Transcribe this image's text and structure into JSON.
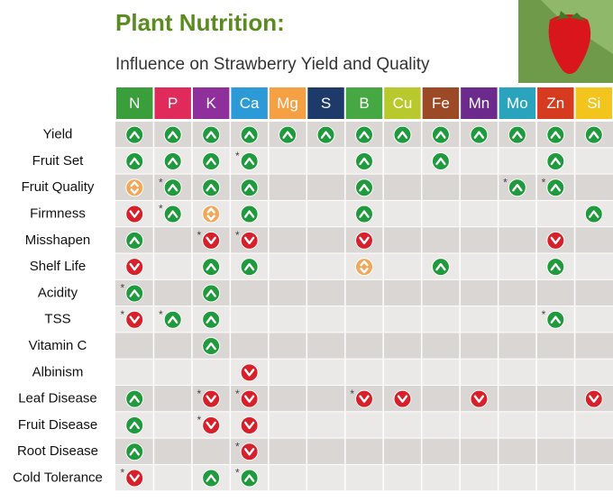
{
  "header": {
    "title": "Plant Nutrition:",
    "subtitle": "Influence on Strawberry Yield and Quality"
  },
  "table": {
    "columns": [
      {
        "label": "N",
        "color": "#3a9f3a"
      },
      {
        "label": "P",
        "color": "#e02a5c"
      },
      {
        "label": "K",
        "color": "#8e2f9c"
      },
      {
        "label": "Ca",
        "color": "#2b9ad6"
      },
      {
        "label": "Mg",
        "color": "#f4a043"
      },
      {
        "label": "S",
        "color": "#1d3a6b"
      },
      {
        "label": "B",
        "color": "#45a842"
      },
      {
        "label": "Cu",
        "color": "#b7c92c"
      },
      {
        "label": "Fe",
        "color": "#9c4a25"
      },
      {
        "label": "Mn",
        "color": "#6b2a8c"
      },
      {
        "label": "Mo",
        "color": "#2aa3bd"
      },
      {
        "label": "Zn",
        "color": "#d63b1f"
      },
      {
        "label": "Si",
        "color": "#f3c41c"
      }
    ],
    "rows": [
      {
        "label": "Yield",
        "cells": [
          {
            "mark": "up"
          },
          {
            "mark": "up"
          },
          {
            "mark": "up"
          },
          {
            "mark": "up"
          },
          {
            "mark": "up"
          },
          {
            "mark": "up"
          },
          {
            "mark": "up"
          },
          {
            "mark": "up"
          },
          {
            "mark": "up"
          },
          {
            "mark": "up"
          },
          {
            "mark": "up"
          },
          {
            "mark": "up"
          },
          {
            "mark": "up"
          }
        ]
      },
      {
        "label": "Fruit Set",
        "cells": [
          {
            "mark": "up"
          },
          {
            "mark": "up"
          },
          {
            "mark": "up"
          },
          {
            "mark": "up",
            "note": "*"
          },
          null,
          null,
          {
            "mark": "up"
          },
          null,
          {
            "mark": "up"
          },
          null,
          null,
          {
            "mark": "up"
          },
          null
        ]
      },
      {
        "label": "Fruit Quality",
        "cells": [
          {
            "mark": "both"
          },
          {
            "mark": "up",
            "note": "*"
          },
          {
            "mark": "up"
          },
          {
            "mark": "up"
          },
          null,
          null,
          {
            "mark": "up"
          },
          null,
          null,
          null,
          {
            "mark": "up",
            "note": "*"
          },
          {
            "mark": "up",
            "note": "*"
          },
          null
        ]
      },
      {
        "label": "Firmness",
        "cells": [
          {
            "mark": "down"
          },
          {
            "mark": "up",
            "note": "*"
          },
          {
            "mark": "both"
          },
          {
            "mark": "up"
          },
          null,
          null,
          {
            "mark": "up"
          },
          null,
          null,
          null,
          null,
          null,
          {
            "mark": "up"
          }
        ]
      },
      {
        "label": "Misshapen",
        "cells": [
          {
            "mark": "up"
          },
          null,
          {
            "mark": "down",
            "note": "*"
          },
          {
            "mark": "down",
            "note": "*"
          },
          null,
          null,
          {
            "mark": "down"
          },
          null,
          null,
          null,
          null,
          {
            "mark": "down"
          },
          null
        ]
      },
      {
        "label": "Shelf Life",
        "cells": [
          {
            "mark": "down"
          },
          null,
          {
            "mark": "up"
          },
          {
            "mark": "up"
          },
          null,
          null,
          {
            "mark": "both"
          },
          null,
          {
            "mark": "up"
          },
          null,
          null,
          {
            "mark": "up"
          },
          null
        ]
      },
      {
        "label": "Acidity",
        "cells": [
          {
            "mark": "up",
            "note": "*"
          },
          null,
          {
            "mark": "up"
          },
          null,
          null,
          null,
          null,
          null,
          null,
          null,
          null,
          null,
          null
        ]
      },
      {
        "label": "TSS",
        "cells": [
          {
            "mark": "down",
            "note": "*"
          },
          {
            "mark": "up",
            "note": "*"
          },
          {
            "mark": "up"
          },
          null,
          null,
          null,
          null,
          null,
          null,
          null,
          null,
          {
            "mark": "up",
            "note": "*"
          },
          null
        ]
      },
      {
        "label": "Vitamin C",
        "cells": [
          null,
          null,
          {
            "mark": "up"
          },
          null,
          null,
          null,
          null,
          null,
          null,
          null,
          null,
          null,
          null
        ]
      },
      {
        "label": "Albinism",
        "cells": [
          null,
          null,
          null,
          {
            "mark": "down"
          },
          null,
          null,
          null,
          null,
          null,
          null,
          null,
          null,
          null
        ]
      },
      {
        "label": "Leaf Disease",
        "cells": [
          {
            "mark": "up"
          },
          null,
          {
            "mark": "down",
            "note": "*"
          },
          {
            "mark": "down",
            "note": "*"
          },
          null,
          null,
          {
            "mark": "down",
            "note": "*"
          },
          {
            "mark": "down"
          },
          null,
          {
            "mark": "down"
          },
          null,
          null,
          {
            "mark": "down"
          }
        ]
      },
      {
        "label": "Fruit Disease",
        "cells": [
          {
            "mark": "up"
          },
          null,
          {
            "mark": "down",
            "note": "*"
          },
          {
            "mark": "down"
          },
          null,
          null,
          null,
          null,
          null,
          null,
          null,
          null,
          null
        ]
      },
      {
        "label": "Root Disease",
        "cells": [
          {
            "mark": "up"
          },
          null,
          null,
          {
            "mark": "down",
            "note": "*"
          },
          null,
          null,
          null,
          null,
          null,
          null,
          null,
          null,
          null
        ]
      },
      {
        "label": "Cold Tolerance",
        "cells": [
          {
            "mark": "down",
            "note": "*"
          },
          null,
          {
            "mark": "up"
          },
          {
            "mark": "up",
            "note": "*"
          },
          null,
          null,
          null,
          null,
          null,
          null,
          null,
          null,
          null
        ]
      }
    ]
  }
}
